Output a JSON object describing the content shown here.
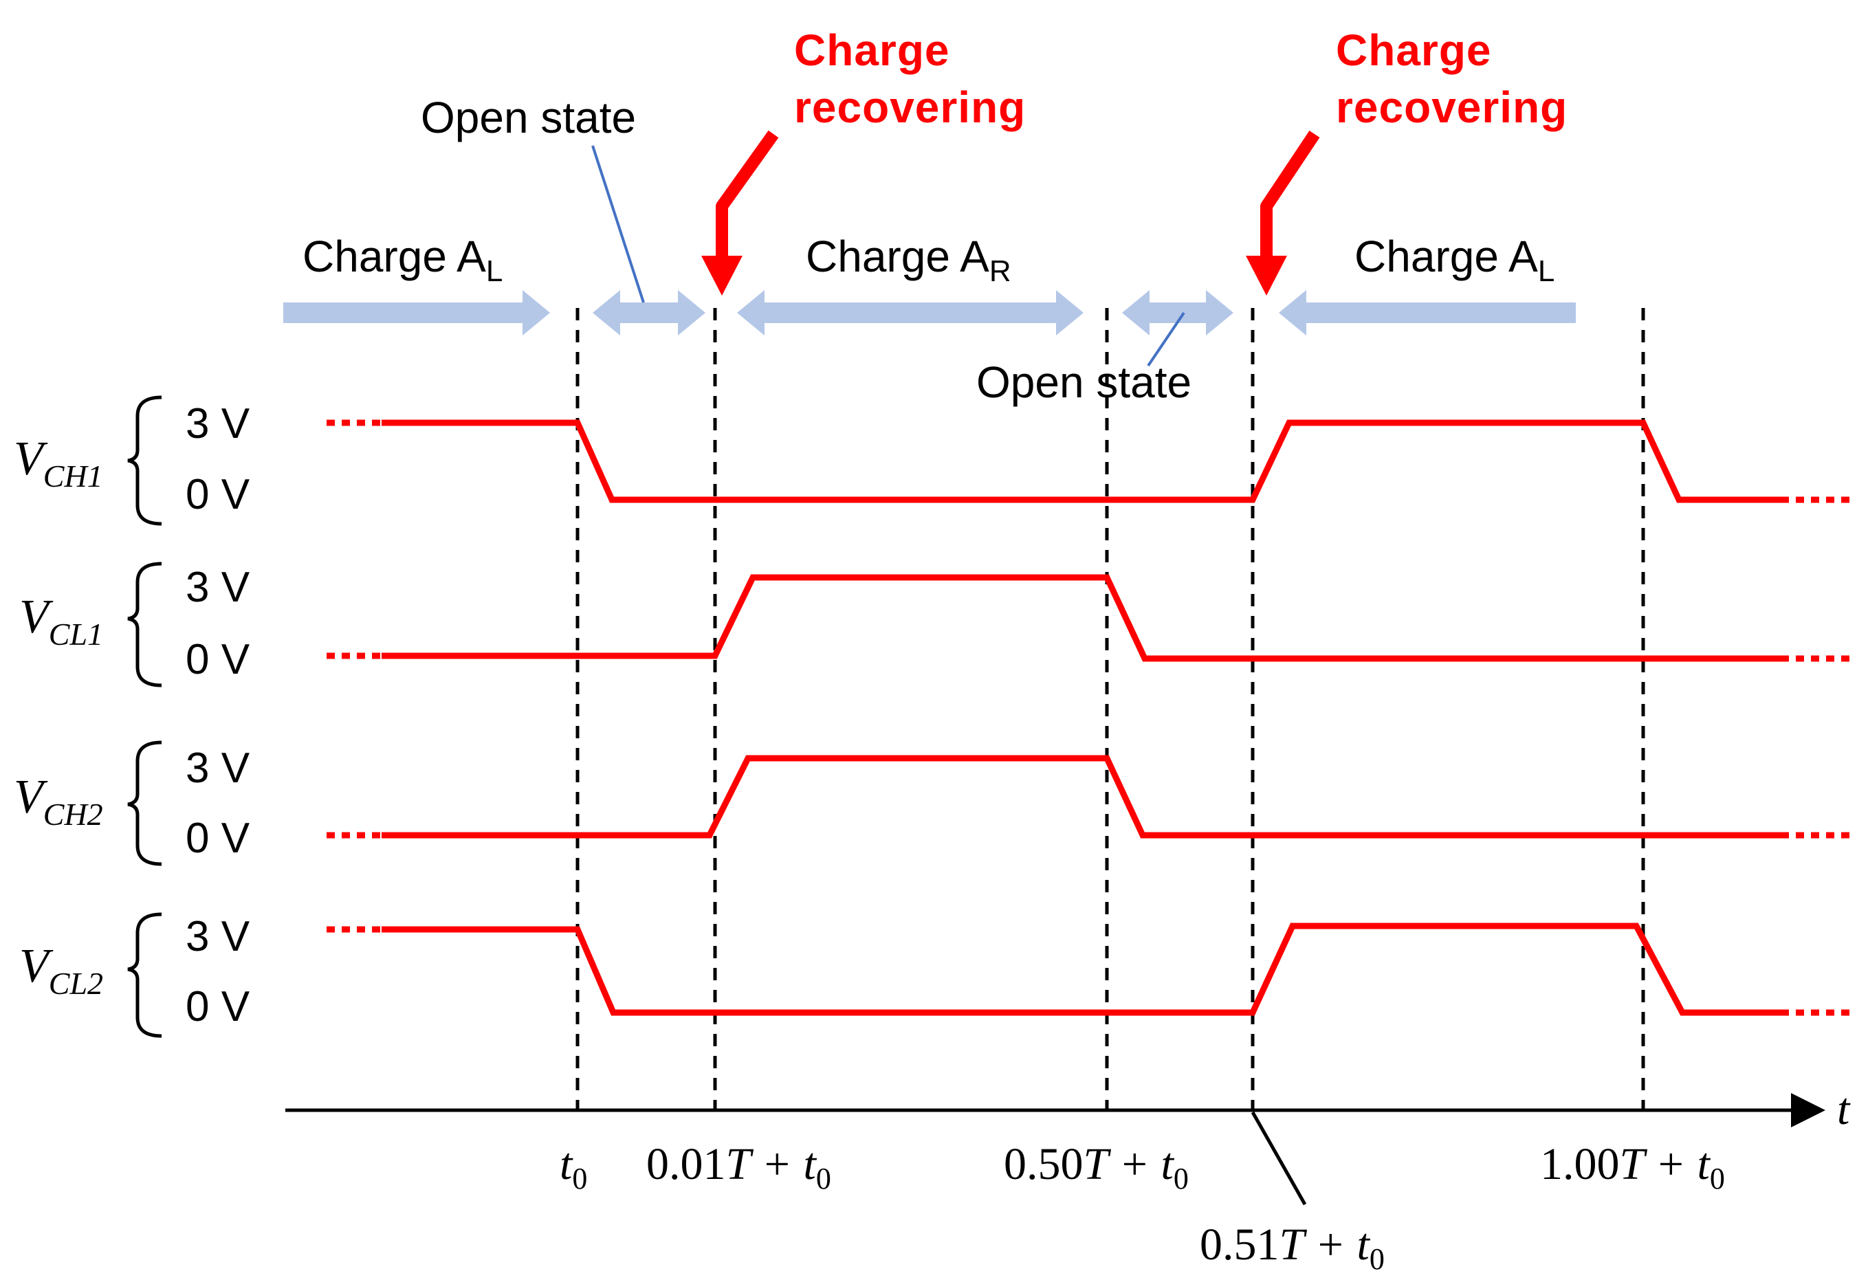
{
  "phases": {
    "charge_al_left": "Charge A",
    "charge_al_left_sub": "L",
    "charge_ar": "Charge A",
    "charge_ar_sub": "R",
    "charge_al_right": "Charge A",
    "charge_al_right_sub": "L",
    "open_state_top": "Open state",
    "open_state_bottom": "Open state"
  },
  "recovery": {
    "left": {
      "line1": "Charge",
      "line2": "recovering"
    },
    "right": {
      "line1": "Charge",
      "line2": "recovering"
    }
  },
  "levels": {
    "high": "3 V",
    "low": "0 V"
  },
  "signals": [
    {
      "name": "V",
      "sub": "CH1"
    },
    {
      "name": "V",
      "sub": "CL1"
    },
    {
      "name": "V",
      "sub": "CH2"
    },
    {
      "name": "V",
      "sub": "CL2"
    }
  ],
  "axis": {
    "label": "t",
    "ticks": [
      {
        "coef": "",
        "var": "t",
        "sub": "0"
      },
      {
        "coef": "0.01",
        "var": "T + t",
        "sub": "0"
      },
      {
        "coef": "0.50",
        "var": "T + t",
        "sub": "0"
      },
      {
        "coef": "0.51",
        "var": "T + t",
        "sub": "0"
      },
      {
        "coef": "1.00",
        "var": "T + t",
        "sub": "0"
      }
    ]
  },
  "colors": {
    "waveform": "#ff0000",
    "phase_arrow": "#b4c7e7",
    "leader": "#4472c4",
    "recovery_text": "#ff0000"
  }
}
